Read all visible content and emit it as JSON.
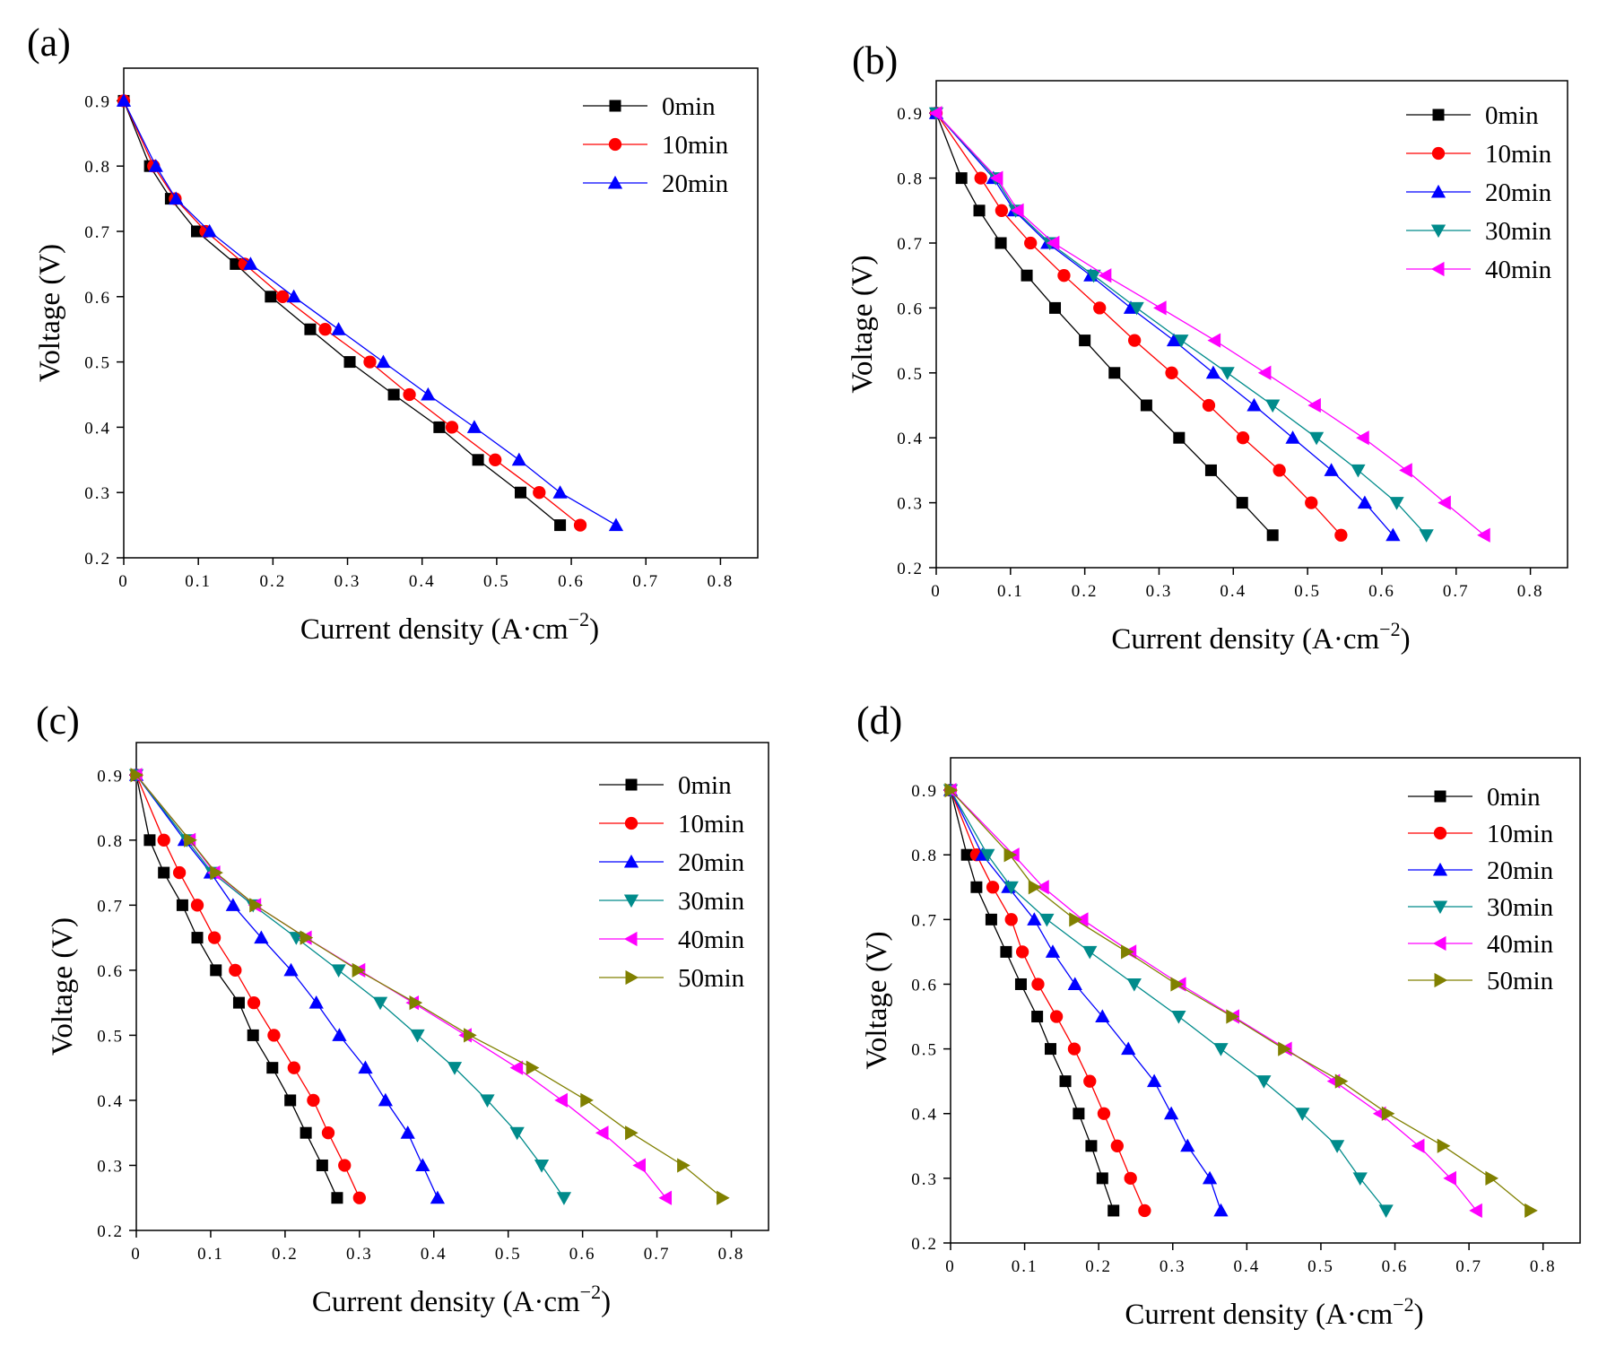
{
  "chart_data": [
    {
      "panel": "(a)",
      "type": "line",
      "xlabel": "Current density (A·cm",
      "xlabel_sup": "−2",
      "xlabel_end": ")",
      "ylabel": "Voltage (V)",
      "xlim": [
        0,
        0.85
      ],
      "ylim": [
        0.2,
        0.95
      ],
      "xticks": [
        "0",
        "0.1",
        "0.2",
        "0.3",
        "0.4",
        "0.5",
        "0.6",
        "0.7",
        "0.8"
      ],
      "yticks": [
        "0.2",
        "0.3",
        "0.4",
        "0.5",
        "0.6",
        "0.7",
        "0.8",
        "0.9"
      ],
      "legend_position": "top-right",
      "series": [
        {
          "name": "0min",
          "color": "#000000",
          "marker": "square",
          "x": [
            0,
            0.035,
            0.063,
            0.098,
            0.15,
            0.197,
            0.25,
            0.303,
            0.362,
            0.423,
            0.475,
            0.532,
            0.585
          ],
          "y": [
            0.9,
            0.8,
            0.75,
            0.7,
            0.65,
            0.6,
            0.55,
            0.5,
            0.45,
            0.4,
            0.35,
            0.3,
            0.25
          ]
        },
        {
          "name": "10min",
          "color": "#ff0000",
          "marker": "circle",
          "x": [
            0,
            0.04,
            0.069,
            0.11,
            0.162,
            0.213,
            0.27,
            0.33,
            0.383,
            0.44,
            0.498,
            0.557,
            0.612
          ],
          "y": [
            0.9,
            0.8,
            0.75,
            0.7,
            0.65,
            0.6,
            0.55,
            0.5,
            0.45,
            0.4,
            0.35,
            0.3,
            0.25
          ]
        },
        {
          "name": "20min",
          "color": "#0000ff",
          "marker": "triangle-up",
          "x": [
            0,
            0.043,
            0.07,
            0.115,
            0.17,
            0.228,
            0.288,
            0.348,
            0.408,
            0.47,
            0.53,
            0.585,
            0.66
          ],
          "y": [
            0.9,
            0.8,
            0.75,
            0.7,
            0.65,
            0.6,
            0.55,
            0.5,
            0.45,
            0.4,
            0.35,
            0.3,
            0.25
          ]
        }
      ]
    },
    {
      "panel": "(b)",
      "type": "line",
      "xlabel": "Current density (A·cm",
      "xlabel_sup": "−2",
      "xlabel_end": ")",
      "ylabel": "Voltage (V)",
      "xlim": [
        0,
        0.85
      ],
      "ylim": [
        0.2,
        0.95
      ],
      "xticks": [
        "0",
        "0.1",
        "0.2",
        "0.3",
        "0.4",
        "0.5",
        "0.6",
        "0.7",
        "0.8"
      ],
      "yticks": [
        "0.2",
        "0.3",
        "0.4",
        "0.5",
        "0.6",
        "0.7",
        "0.8",
        "0.9"
      ],
      "legend_position": "top-right",
      "series": [
        {
          "name": "0min",
          "color": "#000000",
          "marker": "square",
          "x": [
            0,
            0.034,
            0.058,
            0.087,
            0.122,
            0.16,
            0.2,
            0.24,
            0.283,
            0.327,
            0.37,
            0.412,
            0.453
          ],
          "y": [
            0.9,
            0.8,
            0.75,
            0.7,
            0.65,
            0.6,
            0.55,
            0.5,
            0.45,
            0.4,
            0.35,
            0.3,
            0.25
          ]
        },
        {
          "name": "10min",
          "color": "#ff0000",
          "marker": "circle",
          "x": [
            0,
            0.06,
            0.088,
            0.127,
            0.172,
            0.22,
            0.267,
            0.317,
            0.367,
            0.413,
            0.462,
            0.505,
            0.545
          ],
          "y": [
            0.9,
            0.8,
            0.75,
            0.7,
            0.65,
            0.6,
            0.55,
            0.5,
            0.45,
            0.4,
            0.35,
            0.3,
            0.25
          ]
        },
        {
          "name": "20min",
          "color": "#0000ff",
          "marker": "triangle-up",
          "x": [
            0,
            0.077,
            0.105,
            0.15,
            0.208,
            0.262,
            0.32,
            0.373,
            0.428,
            0.48,
            0.532,
            0.577,
            0.615
          ],
          "y": [
            0.9,
            0.8,
            0.75,
            0.7,
            0.65,
            0.6,
            0.55,
            0.5,
            0.45,
            0.4,
            0.35,
            0.3,
            0.25
          ]
        },
        {
          "name": "30min",
          "color": "#008b8b",
          "marker": "triangle-down",
          "x": [
            0,
            0.08,
            0.107,
            0.153,
            0.212,
            0.27,
            0.33,
            0.392,
            0.453,
            0.512,
            0.568,
            0.62,
            0.66
          ],
          "y": [
            0.9,
            0.8,
            0.75,
            0.7,
            0.65,
            0.6,
            0.55,
            0.5,
            0.45,
            0.4,
            0.35,
            0.3,
            0.25
          ]
        },
        {
          "name": "40min",
          "color": "#ff00ff",
          "marker": "triangle-left",
          "x": [
            0,
            0.082,
            0.11,
            0.158,
            0.228,
            0.302,
            0.375,
            0.443,
            0.51,
            0.575,
            0.633,
            0.685,
            0.738
          ],
          "y": [
            0.9,
            0.8,
            0.75,
            0.7,
            0.65,
            0.6,
            0.55,
            0.5,
            0.45,
            0.4,
            0.35,
            0.3,
            0.25
          ]
        }
      ]
    },
    {
      "panel": "(c)",
      "type": "line",
      "xlabel": "Current density (A·cm",
      "xlabel_sup": "−2",
      "xlabel_end": ")",
      "ylabel": "Voltage (V)",
      "xlim": [
        0,
        0.85
      ],
      "ylim": [
        0.2,
        0.95
      ],
      "xticks": [
        "0",
        "0.1",
        "0.2",
        "0.3",
        "0.4",
        "0.5",
        "0.6",
        "0.7",
        "0.8"
      ],
      "yticks": [
        "0.2",
        "0.3",
        "0.4",
        "0.5",
        "0.6",
        "0.7",
        "0.8",
        "0.9"
      ],
      "legend_position": "top-right",
      "series": [
        {
          "name": "0min",
          "color": "#000000",
          "marker": "square",
          "x": [
            0,
            0.018,
            0.037,
            0.062,
            0.082,
            0.107,
            0.138,
            0.157,
            0.183,
            0.207,
            0.228,
            0.25,
            0.27
          ],
          "y": [
            0.9,
            0.8,
            0.75,
            0.7,
            0.65,
            0.6,
            0.55,
            0.5,
            0.45,
            0.4,
            0.35,
            0.3,
            0.25
          ]
        },
        {
          "name": "10min",
          "color": "#ff0000",
          "marker": "circle",
          "x": [
            0,
            0.037,
            0.058,
            0.082,
            0.105,
            0.133,
            0.158,
            0.185,
            0.212,
            0.238,
            0.258,
            0.28,
            0.3
          ],
          "y": [
            0.9,
            0.8,
            0.75,
            0.7,
            0.65,
            0.6,
            0.55,
            0.5,
            0.45,
            0.4,
            0.35,
            0.3,
            0.25
          ]
        },
        {
          "name": "20min",
          "color": "#0000ff",
          "marker": "triangle-up",
          "x": [
            0,
            0.065,
            0.1,
            0.13,
            0.168,
            0.208,
            0.242,
            0.273,
            0.308,
            0.335,
            0.365,
            0.385,
            0.405
          ],
          "y": [
            0.9,
            0.8,
            0.75,
            0.7,
            0.65,
            0.6,
            0.55,
            0.5,
            0.45,
            0.4,
            0.35,
            0.3,
            0.25
          ]
        },
        {
          "name": "30min",
          "color": "#008b8b",
          "marker": "triangle-down",
          "x": [
            0,
            0.068,
            0.102,
            0.157,
            0.215,
            0.272,
            0.328,
            0.378,
            0.428,
            0.472,
            0.512,
            0.545,
            0.575
          ],
          "y": [
            0.9,
            0.8,
            0.75,
            0.7,
            0.65,
            0.6,
            0.55,
            0.5,
            0.45,
            0.4,
            0.35,
            0.3,
            0.25
          ]
        },
        {
          "name": "40min",
          "color": "#ff00ff",
          "marker": "triangle-left",
          "x": [
            0,
            0.072,
            0.105,
            0.16,
            0.228,
            0.3,
            0.372,
            0.443,
            0.512,
            0.572,
            0.627,
            0.677,
            0.712
          ],
          "y": [
            0.9,
            0.8,
            0.75,
            0.7,
            0.65,
            0.6,
            0.55,
            0.5,
            0.45,
            0.4,
            0.35,
            0.3,
            0.25
          ]
        },
        {
          "name": "50min",
          "color": "#808000",
          "marker": "triangle-right",
          "x": [
            0,
            0.072,
            0.107,
            0.16,
            0.228,
            0.298,
            0.375,
            0.448,
            0.532,
            0.605,
            0.665,
            0.735,
            0.788
          ],
          "y": [
            0.9,
            0.8,
            0.75,
            0.7,
            0.65,
            0.6,
            0.55,
            0.5,
            0.45,
            0.4,
            0.35,
            0.3,
            0.25
          ]
        }
      ]
    },
    {
      "panel": "(d)",
      "type": "line",
      "xlabel": "Current density (A·cm",
      "xlabel_sup": "−2",
      "xlabel_end": ")",
      "ylabel": "Voltage (V)",
      "xlim": [
        0,
        0.85
      ],
      "ylim": [
        0.2,
        0.95
      ],
      "xticks": [
        "0",
        "0.1",
        "0.2",
        "0.3",
        "0.4",
        "0.5",
        "0.6",
        "0.7",
        "0.8"
      ],
      "yticks": [
        "0.2",
        "0.3",
        "0.4",
        "0.5",
        "0.6",
        "0.7",
        "0.8",
        "0.9"
      ],
      "legend_position": "top-right",
      "series": [
        {
          "name": "0min",
          "color": "#000000",
          "marker": "square",
          "x": [
            0,
            0.022,
            0.035,
            0.055,
            0.075,
            0.095,
            0.117,
            0.135,
            0.155,
            0.173,
            0.19,
            0.205,
            0.22
          ],
          "y": [
            0.9,
            0.8,
            0.75,
            0.7,
            0.65,
            0.6,
            0.55,
            0.5,
            0.45,
            0.4,
            0.35,
            0.3,
            0.25
          ]
        },
        {
          "name": "10min",
          "color": "#ff0000",
          "marker": "circle",
          "x": [
            0,
            0.035,
            0.057,
            0.082,
            0.097,
            0.118,
            0.143,
            0.167,
            0.188,
            0.207,
            0.225,
            0.243,
            0.262
          ],
          "y": [
            0.9,
            0.8,
            0.75,
            0.7,
            0.65,
            0.6,
            0.55,
            0.5,
            0.45,
            0.4,
            0.35,
            0.3,
            0.25
          ]
        },
        {
          "name": "20min",
          "color": "#0000ff",
          "marker": "triangle-up",
          "x": [
            0,
            0.043,
            0.078,
            0.113,
            0.138,
            0.168,
            0.205,
            0.24,
            0.275,
            0.298,
            0.32,
            0.35,
            0.365
          ],
          "y": [
            0.9,
            0.8,
            0.75,
            0.7,
            0.65,
            0.6,
            0.55,
            0.5,
            0.45,
            0.4,
            0.35,
            0.3,
            0.25
          ]
        },
        {
          "name": "30min",
          "color": "#008b8b",
          "marker": "triangle-down",
          "x": [
            0,
            0.05,
            0.082,
            0.13,
            0.188,
            0.248,
            0.308,
            0.365,
            0.423,
            0.475,
            0.522,
            0.553,
            0.588
          ],
          "y": [
            0.9,
            0.8,
            0.75,
            0.7,
            0.65,
            0.6,
            0.55,
            0.5,
            0.45,
            0.4,
            0.35,
            0.3,
            0.25
          ]
        },
        {
          "name": "40min",
          "color": "#ff00ff",
          "marker": "triangle-left",
          "x": [
            0,
            0.085,
            0.125,
            0.178,
            0.243,
            0.31,
            0.382,
            0.453,
            0.518,
            0.58,
            0.632,
            0.675,
            0.71
          ],
          "y": [
            0.9,
            0.8,
            0.75,
            0.7,
            0.65,
            0.6,
            0.55,
            0.5,
            0.45,
            0.4,
            0.35,
            0.3,
            0.25
          ]
        },
        {
          "name": "50min",
          "color": "#808000",
          "marker": "triangle-right",
          "x": [
            0,
            0.08,
            0.113,
            0.168,
            0.238,
            0.305,
            0.38,
            0.45,
            0.527,
            0.59,
            0.665,
            0.73,
            0.783
          ],
          "y": [
            0.9,
            0.8,
            0.75,
            0.7,
            0.65,
            0.6,
            0.55,
            0.5,
            0.45,
            0.4,
            0.35,
            0.3,
            0.25
          ]
        }
      ]
    }
  ]
}
